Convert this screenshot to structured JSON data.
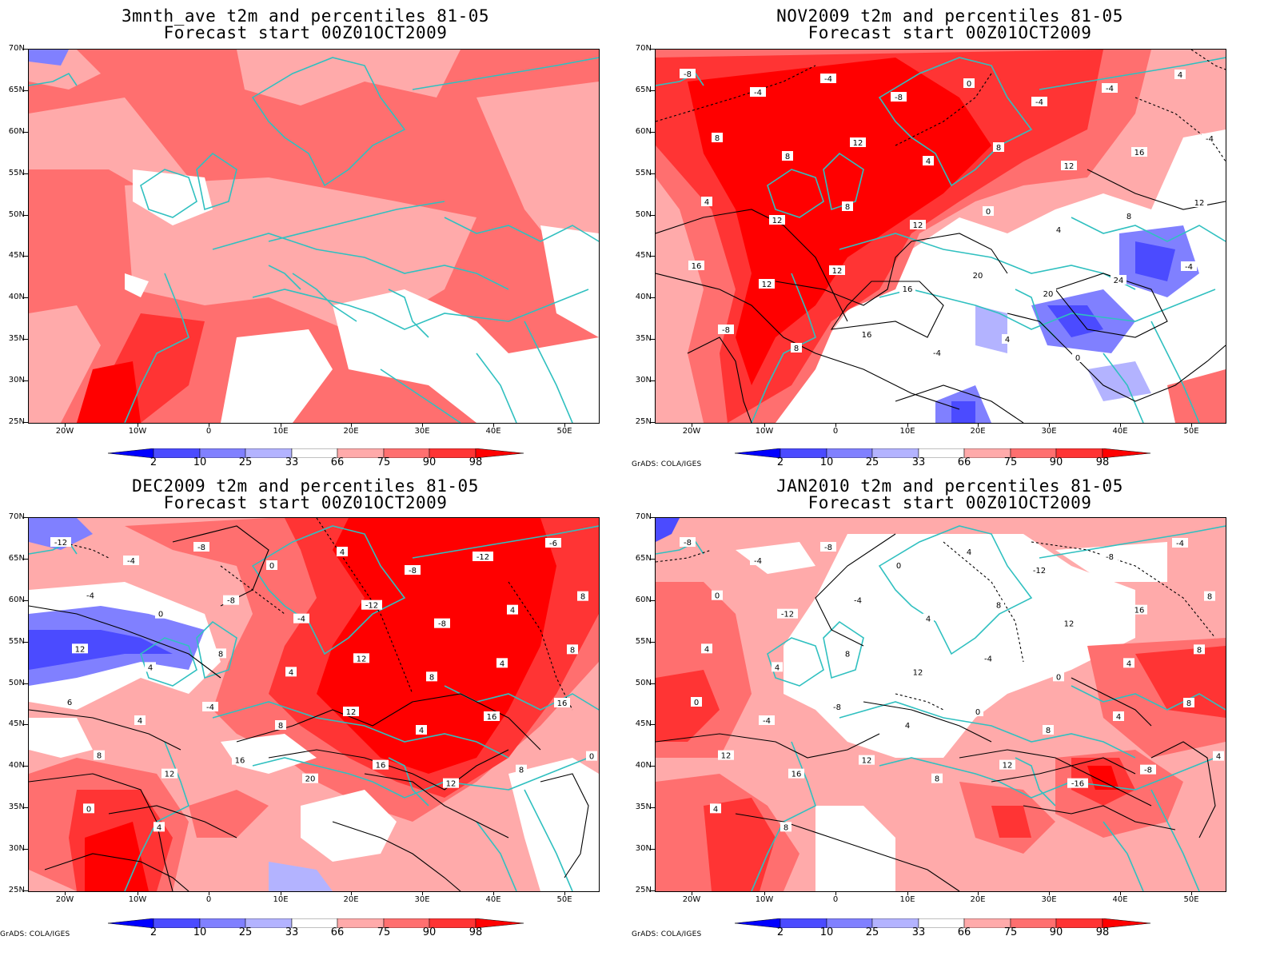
{
  "panels": [
    {
      "id": "p1",
      "title_line1": "3mnth_ave t2m and percentiles 81-05",
      "title_line2": "Forecast start 00Z01OCT2009",
      "show_credit": false,
      "contour_labels": []
    },
    {
      "id": "p2",
      "title_line1": "NOV2009 t2m and percentiles 81-05",
      "title_line2": "Forecast start 00Z01OCT2009",
      "show_credit": true,
      "contour_labels": [
        "-8",
        "-4",
        "-4",
        "-8",
        "0",
        "-4",
        "-4",
        "4",
        "8",
        "8",
        "12",
        "4",
        "8",
        "12",
        "16",
        "-4",
        "4",
        "12",
        "8",
        "12",
        "0",
        "4",
        "8",
        "12",
        "16",
        "12",
        "12",
        "16",
        "20",
        "20",
        "24",
        "-4",
        "-8",
        "8",
        "16",
        "-4",
        "4",
        "0"
      ]
    },
    {
      "id": "p3",
      "title_line1": "DEC2009 t2m and percentiles 81-05",
      "title_line2": "Forecast start 00Z01OCT2009",
      "show_credit": true,
      "contour_labels": [
        "-12",
        "-4",
        "-8",
        "0",
        "4",
        "-8",
        "-12",
        "-6",
        "-4",
        "0",
        "-8",
        "-4",
        "-12",
        "-8",
        "4",
        "8",
        "12",
        "4",
        "8",
        "4",
        "12",
        "8",
        "4",
        "8",
        "6",
        "4",
        "-4",
        "8",
        "12",
        "4",
        "16",
        "16",
        "8",
        "12",
        "16",
        "20",
        "16",
        "12",
        "8",
        "0",
        "0",
        "4"
      ]
    },
    {
      "id": "p4",
      "title_line1": "JAN2010 t2m and percentiles 81-05",
      "title_line2": "Forecast start 00Z01OCT2009",
      "show_credit": true,
      "contour_labels": [
        "-8",
        "-4",
        "-8",
        "0",
        "4",
        "-12",
        "-8",
        "-4",
        "0",
        "-12",
        "-4",
        "4",
        "8",
        "12",
        "16",
        "8",
        "4",
        "4",
        "8",
        "12",
        "-4",
        "0",
        "4",
        "8",
        "0",
        "-4",
        "-8",
        "4",
        "0",
        "8",
        "4",
        "8",
        "12",
        "16",
        "12",
        "8",
        "12",
        "-16",
        "-8",
        "4",
        "4",
        "8"
      ]
    }
  ],
  "axes": {
    "lat_labels": [
      "70N",
      "65N",
      "60N",
      "55N",
      "50N",
      "45N",
      "40N",
      "35N",
      "30N",
      "25N"
    ],
    "lon_labels": [
      "20W",
      "10W",
      "0",
      "10E",
      "20E",
      "30E",
      "40E",
      "50E"
    ]
  },
  "colorbar": {
    "labels": [
      "2",
      "10",
      "25",
      "33",
      "66",
      "75",
      "90",
      "98"
    ],
    "colors": {
      "lt2": "#0000ff",
      "c2_10": "#4b4bff",
      "c10_25": "#8080ff",
      "c25_33": "#b3b3ff",
      "c33_66": "#ffffff",
      "c66_75": "#ffaaaa",
      "c75_90": "#ff6f6f",
      "c90_98": "#ff3434",
      "gt98": "#ff0000"
    }
  },
  "credit": "GrADS: COLA/IGES",
  "coast_color": "#30c0c0"
}
